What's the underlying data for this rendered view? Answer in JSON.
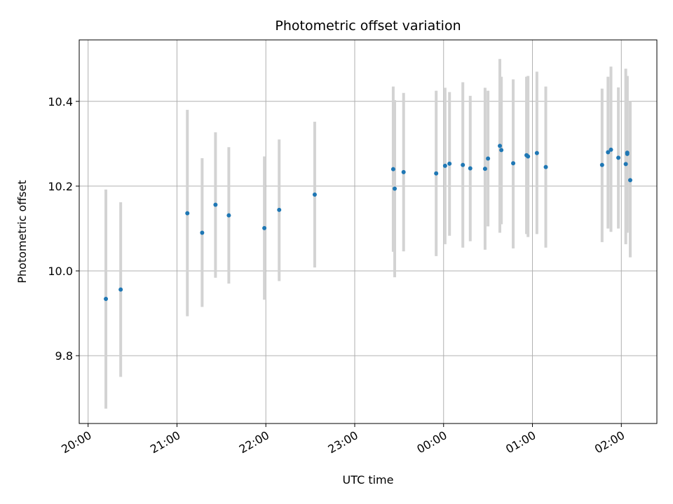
{
  "chart_data": {
    "type": "scatter",
    "title": "Photometric offset variation",
    "xlabel": "UTC time",
    "ylabel": "Photometric offset",
    "x_tick_labels": [
      "20:00",
      "21:00",
      "22:00",
      "23:00",
      "00:00",
      "01:00",
      "02:00"
    ],
    "y_tick_labels": [
      "9.8",
      "10.0",
      "10.2",
      "10.4"
    ],
    "y_ticks": [
      9.8,
      10.0,
      10.2,
      10.4
    ],
    "ylim": [
      9.64,
      10.545
    ],
    "xlim": [
      "19:54",
      "02:24"
    ],
    "grid": true,
    "colors": {
      "points": "#1f77b4",
      "errorbars": "#d3d3d3",
      "grid": "#b0b0b0"
    },
    "points": [
      {
        "x": "20:12",
        "y": 9.934,
        "err_low": 9.675,
        "err_high": 10.192
      },
      {
        "x": "20:22",
        "y": 9.956,
        "err_low": 9.75,
        "err_high": 10.162
      },
      {
        "x": "21:07",
        "y": 10.136,
        "err_low": 9.893,
        "err_high": 10.38
      },
      {
        "x": "21:17",
        "y": 10.09,
        "err_low": 9.915,
        "err_high": 10.266
      },
      {
        "x": "21:26",
        "y": 10.156,
        "err_low": 9.984,
        "err_high": 10.327
      },
      {
        "x": "21:35",
        "y": 10.131,
        "err_low": 9.97,
        "err_high": 10.292
      },
      {
        "x": "21:59",
        "y": 10.101,
        "err_low": 9.932,
        "err_high": 10.27
      },
      {
        "x": "22:09",
        "y": 10.144,
        "err_low": 9.976,
        "err_high": 10.31
      },
      {
        "x": "22:33",
        "y": 10.18,
        "err_low": 10.008,
        "err_high": 10.352
      },
      {
        "x": "23:26",
        "y": 10.24,
        "err_low": 10.045,
        "err_high": 10.435
      },
      {
        "x": "23:27",
        "y": 10.194,
        "err_low": 9.985,
        "err_high": 10.403
      },
      {
        "x": "23:33",
        "y": 10.233,
        "err_low": 10.046,
        "err_high": 10.42
      },
      {
        "x": "23:55",
        "y": 10.23,
        "err_low": 10.035,
        "err_high": 10.425
      },
      {
        "x": "00:01",
        "y": 10.248,
        "err_low": 10.063,
        "err_high": 10.432
      },
      {
        "x": "00:04",
        "y": 10.253,
        "err_low": 10.083,
        "err_high": 10.422
      },
      {
        "x": "00:13",
        "y": 10.25,
        "err_low": 10.055,
        "err_high": 10.445
      },
      {
        "x": "00:18",
        "y": 10.242,
        "err_low": 10.07,
        "err_high": 10.413
      },
      {
        "x": "00:28",
        "y": 10.241,
        "err_low": 10.05,
        "err_high": 10.432
      },
      {
        "x": "00:30",
        "y": 10.265,
        "err_low": 10.105,
        "err_high": 10.425
      },
      {
        "x": "00:38",
        "y": 10.295,
        "err_low": 10.09,
        "err_high": 10.5
      },
      {
        "x": "00:39",
        "y": 10.285,
        "err_low": 10.11,
        "err_high": 10.458
      },
      {
        "x": "00:47",
        "y": 10.254,
        "err_low": 10.053,
        "err_high": 10.452
      },
      {
        "x": "00:56",
        "y": 10.273,
        "err_low": 10.087,
        "err_high": 10.458
      },
      {
        "x": "00:57",
        "y": 10.27,
        "err_low": 10.08,
        "err_high": 10.46
      },
      {
        "x": "01:03",
        "y": 10.278,
        "err_low": 10.087,
        "err_high": 10.47
      },
      {
        "x": "01:09",
        "y": 10.245,
        "err_low": 10.055,
        "err_high": 10.435
      },
      {
        "x": "01:47",
        "y": 10.25,
        "err_low": 10.068,
        "err_high": 10.43
      },
      {
        "x": "01:51",
        "y": 10.28,
        "err_low": 10.1,
        "err_high": 10.458
      },
      {
        "x": "01:53",
        "y": 10.286,
        "err_low": 10.092,
        "err_high": 10.482
      },
      {
        "x": "01:58",
        "y": 10.267,
        "err_low": 10.1,
        "err_high": 10.433
      },
      {
        "x": "02:03",
        "y": 10.252,
        "err_low": 10.063,
        "err_high": 10.477
      },
      {
        "x": "02:04",
        "y": 10.276,
        "err_low": 10.09,
        "err_high": 10.46
      },
      {
        "x": "02:04",
        "y": 10.279,
        "err_low": 10.095,
        "err_high": 10.46
      },
      {
        "x": "02:06",
        "y": 10.214,
        "err_low": 10.032,
        "err_high": 10.4
      }
    ]
  }
}
